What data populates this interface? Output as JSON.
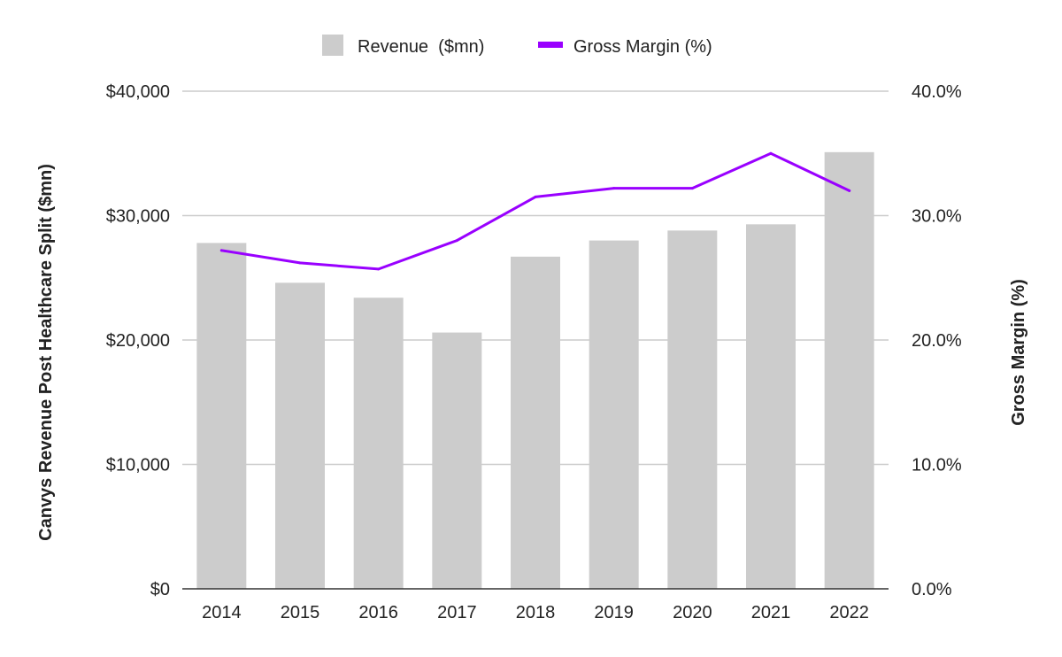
{
  "chart_data": {
    "type": "bar",
    "categories": [
      "2014",
      "2015",
      "2016",
      "2017",
      "2018",
      "2019",
      "2020",
      "2021",
      "2022"
    ],
    "series": [
      {
        "name": "Revenue  ($mn)",
        "type": "bar",
        "axis": "left",
        "color": "#cccccc",
        "values": [
          27800,
          24600,
          23400,
          20600,
          26700,
          28000,
          28800,
          29300,
          35100
        ]
      },
      {
        "name": "Gross Margin (%)",
        "type": "line",
        "axis": "right",
        "color": "#9900ff",
        "values": [
          27.2,
          26.2,
          25.7,
          28.0,
          31.5,
          32.2,
          32.2,
          35.0,
          32.0
        ]
      }
    ],
    "y_left": {
      "label": "Canvys Revenue Post Healthcare Split ($mn)",
      "ylim": [
        0,
        40000
      ],
      "ticks": [
        0,
        10000,
        20000,
        30000,
        40000
      ],
      "tick_labels": [
        "$0",
        "$10,000",
        "$20,000",
        "$30,000",
        "$40,000"
      ]
    },
    "y_right": {
      "label": "Gross Margin (%)",
      "ylim": [
        0,
        40
      ],
      "ticks": [
        0,
        10,
        20,
        30,
        40
      ],
      "tick_labels": [
        "0.0%",
        "10.0%",
        "20.0%",
        "30.0%",
        "40.0%"
      ]
    },
    "grid": true,
    "gridline_color": "#cccccc",
    "legend_position": "top-center"
  }
}
